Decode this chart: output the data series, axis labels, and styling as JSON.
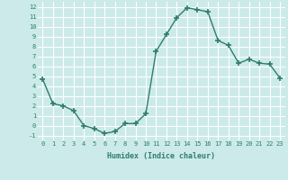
{
  "x": [
    0,
    1,
    2,
    3,
    4,
    5,
    6,
    7,
    8,
    9,
    10,
    11,
    12,
    13,
    14,
    15,
    16,
    17,
    18,
    19,
    20,
    21,
    22,
    23
  ],
  "y": [
    4.7,
    2.2,
    2.0,
    1.5,
    0.0,
    -0.3,
    -0.8,
    -0.6,
    0.2,
    0.2,
    1.2,
    7.5,
    9.2,
    10.9,
    11.9,
    11.7,
    11.5,
    8.6,
    8.1,
    6.3,
    6.7,
    6.3,
    6.2,
    4.8
  ],
  "xlabel": "Humidex (Indice chaleur)",
  "ylim": [
    -1.5,
    12.5
  ],
  "xlim": [
    -0.5,
    23.5
  ],
  "yticks": [
    -1,
    0,
    1,
    2,
    3,
    4,
    5,
    6,
    7,
    8,
    9,
    10,
    11,
    12
  ],
  "xticks": [
    0,
    1,
    2,
    3,
    4,
    5,
    6,
    7,
    8,
    9,
    10,
    11,
    12,
    13,
    14,
    15,
    16,
    17,
    18,
    19,
    20,
    21,
    22,
    23
  ],
  "line_color": "#2e7d6e",
  "bg_color": "#cceaea",
  "grid_color": "#ffffff",
  "font_color": "#2e7d6e"
}
